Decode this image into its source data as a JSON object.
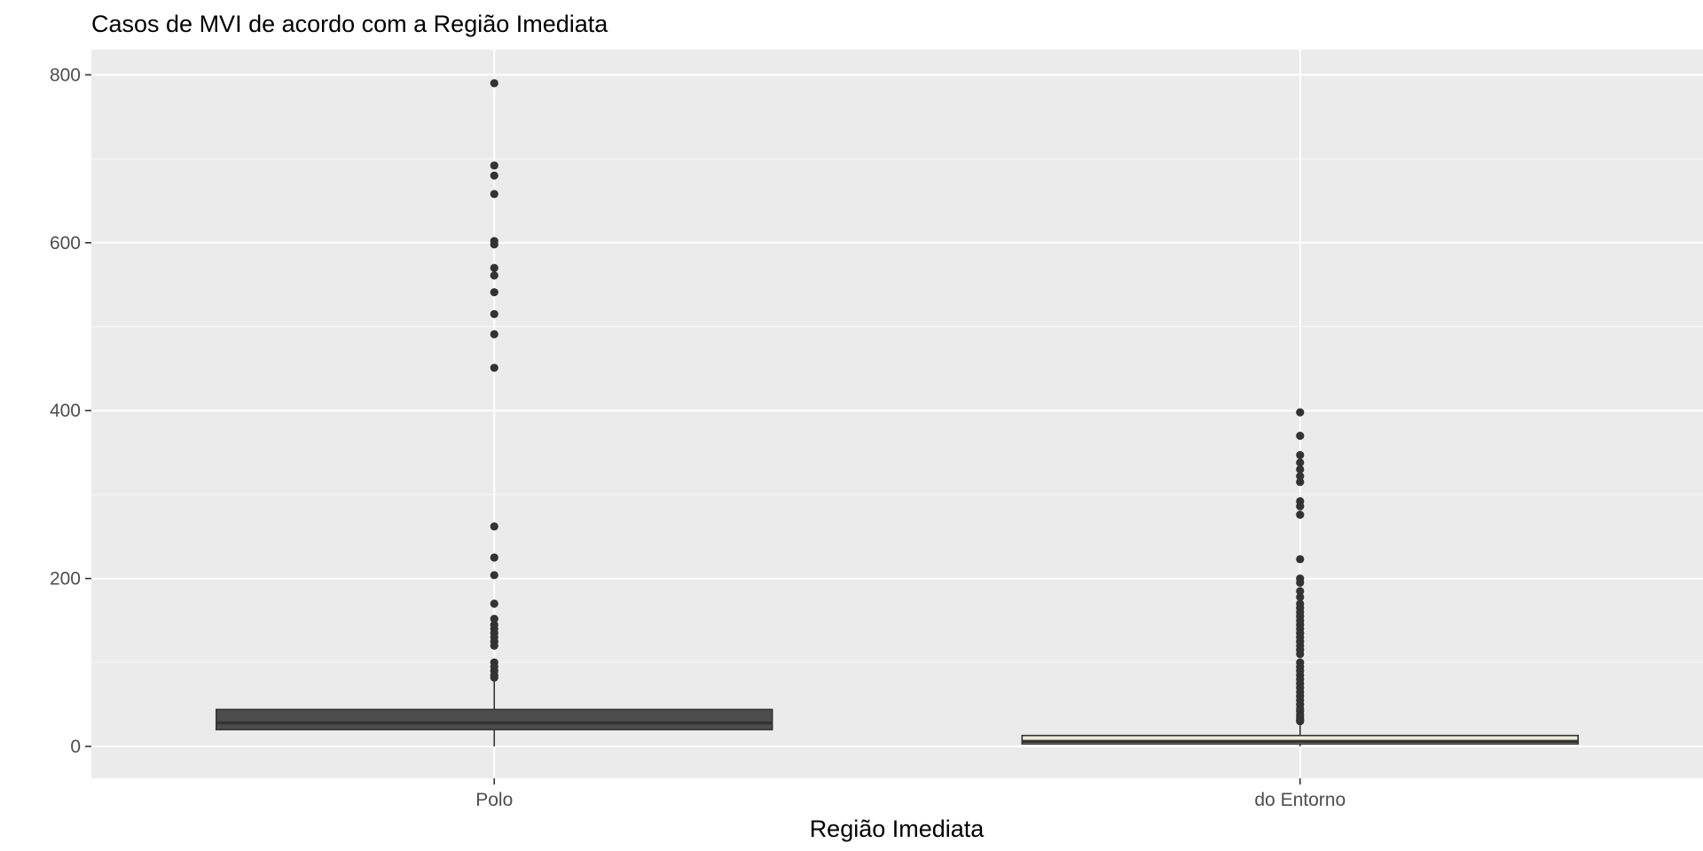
{
  "chart_data": {
    "type": "boxplot",
    "title": "Casos de MVI de acordo com a Região Imediata",
    "xlabel": "Região Imediata",
    "ylabel": "",
    "ylim": [
      -38,
      830
    ],
    "yticks": [
      0,
      200,
      400,
      600,
      800
    ],
    "ytick_labels": [
      "0",
      "200",
      "400",
      "600",
      "800"
    ],
    "grid": true,
    "legend": "none",
    "colors": {
      "panel_background": "#ebebeb",
      "grid_major": "#ffffff",
      "grid_minor": "#f6f6f6",
      "outlier": "#333333",
      "box_outline": "#333333",
      "tick_color": "#333333"
    },
    "categories": [
      "Polo",
      "do Entorno"
    ],
    "boxes": [
      {
        "category": "Polo",
        "min": 0,
        "q1": 20,
        "median": 28,
        "q3": 44,
        "whisker_low": 0,
        "whisker_high": 80,
        "fill": "#4d4d4d",
        "outliers": [
          790,
          692,
          680,
          658,
          602,
          598,
          570,
          561,
          541,
          515,
          491,
          451,
          262,
          225,
          204,
          170,
          152,
          145,
          140,
          135,
          130,
          125,
          120,
          100,
          95,
          90,
          85,
          82
        ]
      },
      {
        "category": "do Entorno",
        "min": 0,
        "q1": 3,
        "median": 6,
        "q3": 13,
        "whisker_low": 0,
        "whisker_high": 28,
        "fill": "#ebebd7",
        "outliers": [
          398,
          370,
          347,
          338,
          330,
          322,
          315,
          292,
          286,
          276,
          223,
          200,
          195,
          185,
          178,
          170,
          165,
          160,
          155,
          150,
          145,
          140,
          135,
          130,
          125,
          120,
          115,
          110,
          100,
          95,
          90,
          85,
          80,
          75,
          70,
          65,
          60,
          55,
          50,
          45,
          42,
          38,
          35,
          32,
          30
        ]
      }
    ]
  }
}
